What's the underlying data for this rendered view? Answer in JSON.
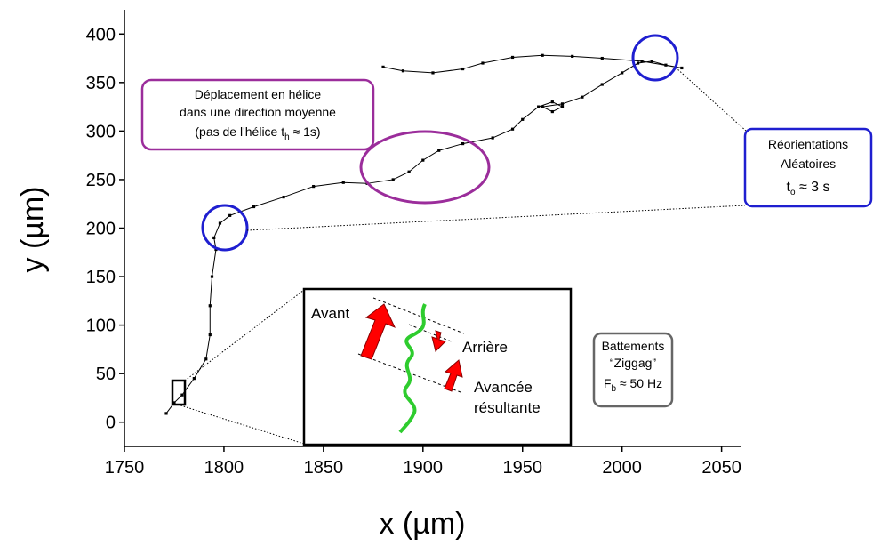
{
  "chart_data": {
    "type": "line",
    "xlabel": "x (µm)",
    "ylabel": "y (µm)",
    "xlim": [
      1750,
      2060
    ],
    "xticks": [
      1750,
      1800,
      1850,
      1900,
      1950,
      2000,
      2050
    ],
    "ylim": [
      -25,
      425
    ],
    "yticks": [
      0,
      50,
      100,
      150,
      200,
      250,
      300,
      350,
      400
    ],
    "grid": false,
    "series": [
      {
        "color": "#000000",
        "x": [
          1771,
          1775,
          1779,
          1785,
          1791,
          1793,
          1793,
          1794,
          1796,
          1795,
          1798,
          1803,
          1815,
          1830,
          1845,
          1860,
          1872,
          1885,
          1893,
          1900,
          1908,
          1920,
          1935,
          1945,
          1950,
          1958,
          1965,
          1970,
          1965,
          1960,
          1970,
          1980,
          1990,
          2000,
          2008,
          2015,
          2022,
          2030,
          2010,
          1990,
          1975,
          1960,
          1945,
          1930,
          1920,
          1905,
          1890,
          1880
        ],
        "values": [
          9,
          20,
          28,
          45,
          65,
          90,
          120,
          150,
          178,
          190,
          205,
          213,
          222,
          232,
          243,
          247,
          246,
          250,
          258,
          270,
          280,
          287,
          293,
          302,
          312,
          325,
          330,
          325,
          320,
          325,
          328,
          335,
          348,
          360,
          370,
          372,
          368,
          365,
          372,
          375,
          377,
          378,
          376,
          370,
          364,
          360,
          362,
          366
        ]
      }
    ],
    "helix_label": [
      "Déplacement en hélice",
      "dans une direction moyenne",
      "(pas de l'hélice t",
      "h",
      " ≈ 1s)"
    ],
    "reorientation_label": [
      "Réorientations",
      "Aléatoires",
      "t",
      "o",
      " ≈ 3 s"
    ],
    "beat_label": [
      "Battements",
      "“Ziggag”",
      "F",
      "b",
      " ≈ 50 Hz"
    ],
    "inset_labels": [
      "Avant",
      "Arrière",
      "Avancée",
      "résultante"
    ]
  }
}
